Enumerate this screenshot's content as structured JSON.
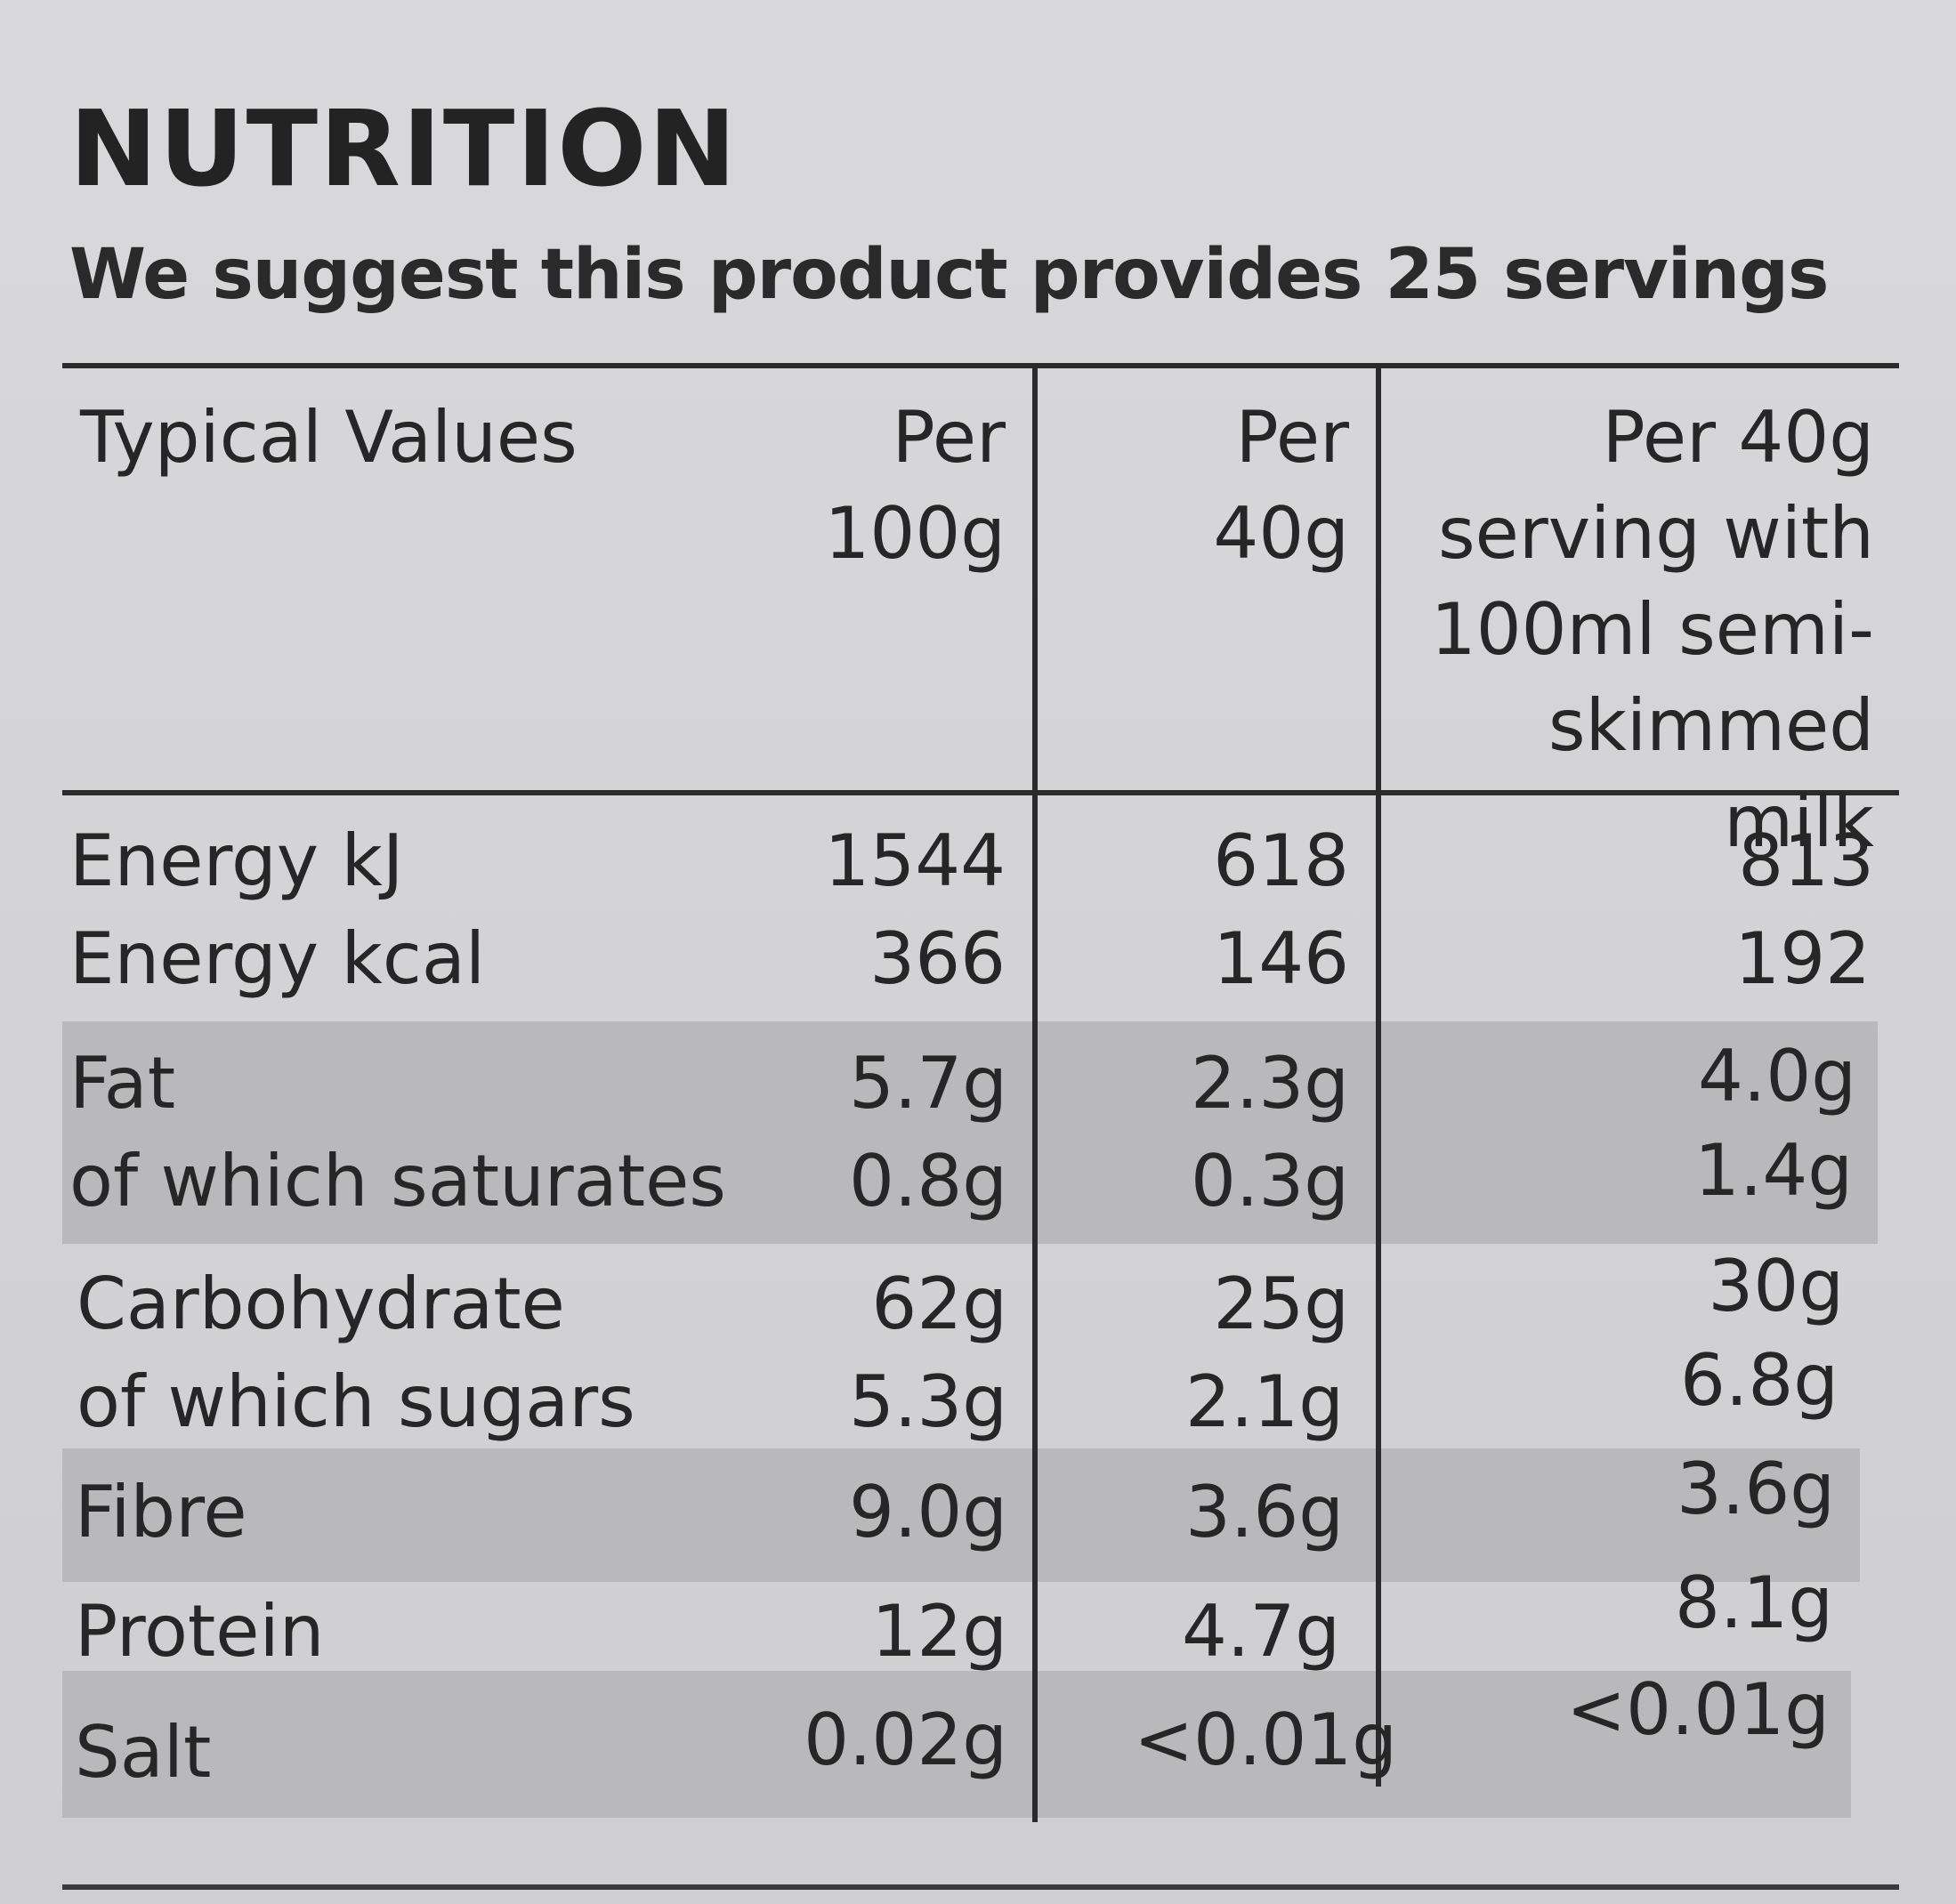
{
  "title": "NUTRITION",
  "subtitle": "We suggest this product provides 25 servings",
  "table": {
    "headers": [
      "Typical Values",
      "Per\n100g",
      "Per\n40g",
      "Per 40g\nserving with\n100ml semi-\nskimmed milk"
    ],
    "rows": [
      {
        "label": "Energy kJ",
        "v100": "1544",
        "v40": "618",
        "vmilk": "813"
      },
      {
        "label": "Energy kcal",
        "v100": "366",
        "v40": "146",
        "vmilk": "192"
      },
      {
        "label": "Fat",
        "v100": "5.7g",
        "v40": "2.3g",
        "vmilk": "4.0g"
      },
      {
        "label": "of which saturates",
        "v100": "0.8g",
        "v40": "0.3g",
        "vmilk": "1.4g"
      },
      {
        "label": "Carbohydrate",
        "v100": "62g",
        "v40": "25g",
        "vmilk": "30g"
      },
      {
        "label": "of which sugars",
        "v100": "5.3g",
        "v40": "2.1g",
        "vmilk": "6.8g"
      },
      {
        "label": "Fibre",
        "v100": "9.0g",
        "v40": "3.6g",
        "vmilk": "3.6g"
      },
      {
        "label": "Protein",
        "v100": "12g",
        "v40": "4.7g",
        "vmilk": "8.1g"
      },
      {
        "label": "Salt",
        "v100": "0.02g",
        "v40": "<0.01g",
        "vmilk": "<0.01g"
      }
    ]
  },
  "colors": {
    "background": "#d4d4d6",
    "shaded_band": "#b9b9bb",
    "text": "#262626",
    "rule": "#2b2b2b"
  }
}
